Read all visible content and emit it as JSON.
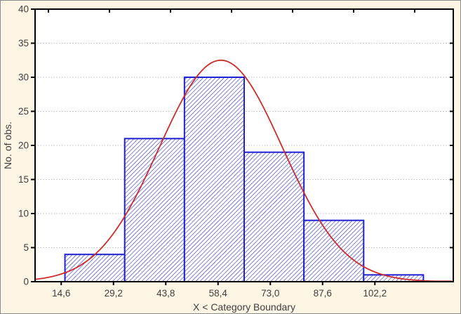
{
  "figure": {
    "background": "#FDF5E4",
    "plot_background": "#FFFFFF",
    "axis_color": "#000000",
    "grid_color": "#BDBDBD",
    "label_color": "#3E3E3E",
    "bar_color": "#2121D4",
    "curve_color": "#CE2B2B"
  },
  "chart_data": {
    "type": "histogram",
    "title": "",
    "xlabel": "X < Category Boundary",
    "ylabel": "No. of obs.",
    "x_tick_labels": [
      "14,6",
      "29,2",
      "43,8",
      "58,4",
      "73,0",
      "87,6",
      "102,2"
    ],
    "x_boundaries": [
      14.6,
      29.2,
      43.8,
      58.4,
      73.0,
      87.6,
      102.2
    ],
    "y_ticks": [
      0,
      5,
      10,
      15,
      20,
      25,
      30,
      35,
      40
    ],
    "ylim": [
      0,
      40
    ],
    "grid": "horizontal-dotted",
    "bins": {
      "counts": [
        4,
        21,
        30,
        19,
        9,
        1
      ],
      "total_obs": 84
    },
    "normal_curve": {
      "shape": "gaussian",
      "peak": 32.5,
      "mean_bin_position": 2.61,
      "sigma_bins": 1.03
    }
  }
}
